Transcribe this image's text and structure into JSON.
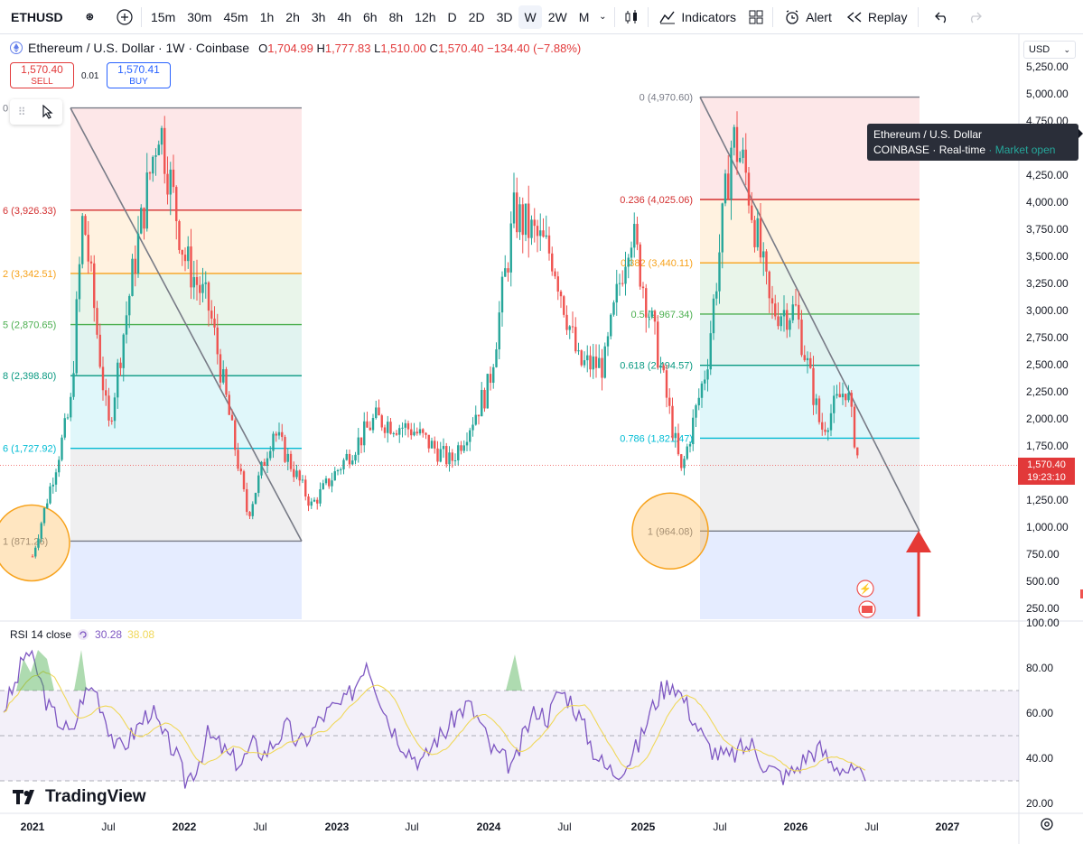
{
  "toolbar": {
    "symbol": "ETHUSD",
    "intervals": [
      "15m",
      "30m",
      "45m",
      "1h",
      "2h",
      "3h",
      "4h",
      "6h",
      "8h",
      "12h",
      "D",
      "2D",
      "3D",
      "W",
      "2W",
      "M"
    ],
    "active_interval": "W",
    "indicators_label": "Indicators",
    "alert_label": "Alert",
    "replay_label": "Replay"
  },
  "legend": {
    "title": "Ethereum / U.S. Dollar · 1W · Coinbase",
    "o_label": "O",
    "o": "1,704.99",
    "h_label": "H",
    "h": "1,777.83",
    "l_label": "L",
    "l": "1,510.00",
    "c_label": "C",
    "c": "1,570.40",
    "change": "−134.40 (−7.88%)"
  },
  "trade": {
    "sell_price": "1,570.40",
    "sell_label": "SELL",
    "buy_price": "1,570.41",
    "buy_label": "BUY",
    "spread": "0.01"
  },
  "tooltip": {
    "name": "Ethereum / U.S. Dollar",
    "exchange": "COINBASE",
    "realtime": "Real-time",
    "status": "Market open"
  },
  "price_axis": {
    "currency": "USD",
    "labels": [
      "5,250.00",
      "5,000.00",
      "4,750.00",
      "4,500.00",
      "4,250.00",
      "4,000.00",
      "3,750.00",
      "3,500.00",
      "3,250.00",
      "3,000.00",
      "2,750.00",
      "2,500.00",
      "2,250.00",
      "2,000.00",
      "1,750.00",
      "1,500.00",
      "1,250.00",
      "1,000.00",
      "750.00",
      "500.00",
      "250.00"
    ],
    "last_price": "1,570.40",
    "countdown": "19:23:10"
  },
  "time_axis": [
    "2021",
    "Jul",
    "2022",
    "Jul",
    "2023",
    "Jul",
    "2024",
    "Jul",
    "2025",
    "Jul",
    "2026",
    "Jul",
    "2027"
  ],
  "fib_left": [
    {
      "label": "0",
      "value": 4870,
      "color": "#787b86"
    },
    {
      "label": "6 (3,926.33)",
      "value": 3926.33,
      "color": "#d32f2f"
    },
    {
      "label": "2 (3,342.51)",
      "value": 3342.51,
      "color": "#f7a21b"
    },
    {
      "label": "5 (2,870.65)",
      "value": 2870.65,
      "color": "#4caf50"
    },
    {
      "label": "8 (2,398.80)",
      "value": 2398.8,
      "color": "#089981"
    },
    {
      "label": "6 (1,727.92)",
      "value": 1727.92,
      "color": "#00bcd4"
    },
    {
      "label": "1 (871.26)",
      "value": 871.26,
      "color": "#787b86"
    }
  ],
  "fib_right": [
    {
      "label": "0 (4,970.60)",
      "value": 4970.6,
      "color": "#787b86"
    },
    {
      "label": "0.236 (4,025.06)",
      "value": 4025.06,
      "color": "#d32f2f"
    },
    {
      "label": "0.382 (3,440.11)",
      "value": 3440.11,
      "color": "#f7a21b"
    },
    {
      "label": "0.5 (2,967.34)",
      "value": 2967.34,
      "color": "#4caf50"
    },
    {
      "label": "0.618 (2,494.57)",
      "value": 2494.57,
      "color": "#089981"
    },
    {
      "label": "0.786 (1,821.47)",
      "value": 1821.47,
      "color": "#00bcd4"
    },
    {
      "label": "1 (964.08)",
      "value": 964.08,
      "color": "#787b86"
    }
  ],
  "rsi": {
    "label": "RSI 14 close",
    "value": "30.28",
    "ma_value": "38.08",
    "axis": [
      "100.00",
      "80.00",
      "60.00",
      "40.00",
      "20.00"
    ]
  },
  "branding": "TradingView",
  "chart_data": {
    "type": "line",
    "title": "Ethereum / U.S. Dollar · 1W · Coinbase",
    "x": [
      "2021-01",
      "2021-04",
      "2021-05",
      "2021-07",
      "2021-09",
      "2021-11",
      "2022-01",
      "2022-03",
      "2022-06",
      "2022-08",
      "2022-11",
      "2023-04",
      "2023-07",
      "2023-10",
      "2024-01",
      "2024-03",
      "2024-06",
      "2024-08",
      "2024-10",
      "2024-12",
      "2025-02",
      "2025-04",
      "2025-06",
      "2025-08",
      "2025-09",
      "2025-11",
      "2026-01",
      "2026-03",
      "2026-05",
      "2026-06"
    ],
    "series": [
      {
        "values": [
          730,
          2100,
          3900,
          1900,
          3400,
          4750,
          3500,
          3000,
          1100,
          1900,
          1200,
          2000,
          1900,
          1600,
          2300,
          3900,
          3500,
          2500,
          2500,
          3800,
          2700,
          1500,
          2500,
          4600,
          4300,
          3000,
          3000,
          1900,
          2300,
          1570
        ]
      }
    ],
    "ylim": [
      150,
      5350
    ],
    "xlabel": "",
    "ylabel": ""
  },
  "rsi_data": [
    62,
    72,
    88,
    78,
    62,
    56,
    50,
    68,
    72,
    58,
    44,
    48,
    55,
    62,
    50,
    44,
    30,
    36,
    50,
    46,
    40,
    38,
    46,
    42,
    48,
    54,
    46,
    50,
    58,
    62,
    64,
    72,
    84,
    70,
    56,
    48,
    42,
    38,
    48,
    52,
    60,
    64,
    56,
    44,
    40,
    36,
    52,
    62,
    58,
    70,
    66,
    56,
    44,
    36,
    34,
    38,
    46,
    60,
    70,
    74,
    66,
    56,
    46,
    42,
    40,
    44,
    46,
    38,
    34,
    32,
    36,
    42,
    44,
    38,
    36,
    33,
    30
  ]
}
